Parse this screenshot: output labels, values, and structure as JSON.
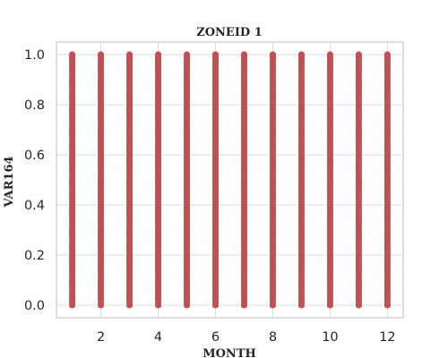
{
  "chart_data": {
    "type": "scatter",
    "title": "ZONEID 1",
    "xlabel": "MONTH",
    "ylabel": "VAR164",
    "xlim": [
      0.45,
      12.55
    ],
    "ylim": [
      -0.05,
      1.05
    ],
    "x_ticks": [
      2,
      4,
      6,
      8,
      10,
      12
    ],
    "y_ticks": [
      0.0,
      0.2,
      0.4,
      0.6,
      0.8,
      1.0
    ],
    "x_tick_labels": [
      "2",
      "4",
      "6",
      "8",
      "10",
      "12"
    ],
    "y_tick_labels": [
      "0.0",
      "0.2",
      "0.4",
      "0.6",
      "0.8",
      "1.0"
    ],
    "grid": true,
    "series": [
      {
        "color": "#c44e52",
        "x": [
          1,
          2,
          3,
          4,
          5,
          6,
          7,
          8,
          9,
          10,
          11,
          12
        ],
        "y_range": [
          [
            0.0,
            1.0
          ],
          [
            0.0,
            1.0
          ],
          [
            0.0,
            1.0
          ],
          [
            0.0,
            1.0
          ],
          [
            0.0,
            1.0
          ],
          [
            0.0,
            1.0
          ],
          [
            0.0,
            1.0
          ],
          [
            0.0,
            1.0
          ],
          [
            0.0,
            1.0
          ],
          [
            0.0,
            1.0
          ],
          [
            0.0,
            1.0
          ],
          [
            0.0,
            1.0
          ]
        ]
      }
    ]
  }
}
